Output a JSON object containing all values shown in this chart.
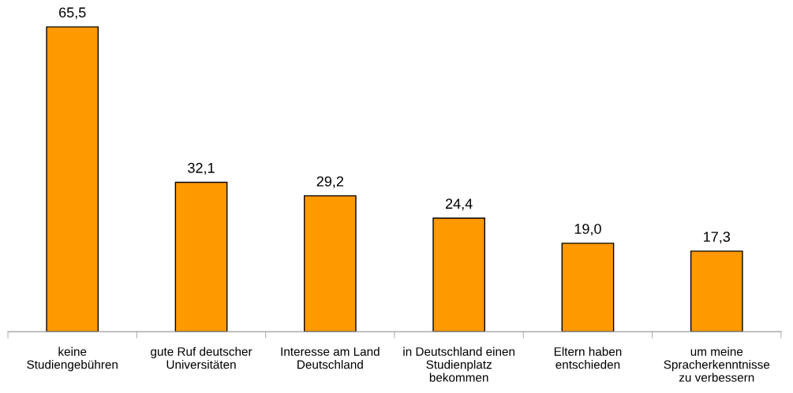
{
  "chart_data": {
    "type": "bar",
    "categories": [
      "keine\nStudiengebühren",
      "gute Ruf deutscher\nUniversitäten",
      "Interesse am Land\nDeutschland",
      "in Deutschland einen\nStudienplatz\nbekommen",
      "Eltern haben\nentschieden",
      "um meine\nSpracherkenntnisse\nzu verbessern"
    ],
    "values": [
      65.5,
      32.1,
      29.2,
      24.4,
      19.0,
      17.3
    ],
    "value_labels": [
      "65,5",
      "32,1",
      "29,2",
      "24,4",
      "19,0",
      "17,3"
    ],
    "color": "#ff9900",
    "grid": false,
    "legend": false
  }
}
